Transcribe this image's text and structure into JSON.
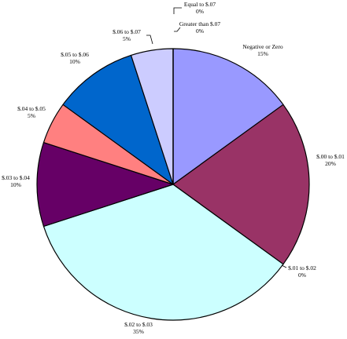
{
  "chart_data": {
    "type": "pie",
    "title": "",
    "slices": [
      {
        "name": "Negative or Zero",
        "value": 15,
        "label": "15%",
        "color": "#9999FF"
      },
      {
        "name": "$.00 to $.01",
        "value": 20,
        "label": "20%",
        "color": "#993366"
      },
      {
        "name": "$.01 to $.02",
        "value": 0,
        "label": "0%",
        "color": "#FFFFCC"
      },
      {
        "name": "$.02 to $.03",
        "value": 35,
        "label": "35%",
        "color": "#CCFFFF"
      },
      {
        "name": "$.03 to $.04",
        "value": 10,
        "label": "10%",
        "color": "#660066"
      },
      {
        "name": "$.04 to $.05",
        "value": 5,
        "label": "5%",
        "color": "#FF8080"
      },
      {
        "name": "$.05 to $.06",
        "value": 10,
        "label": "10%",
        "color": "#0066CC"
      },
      {
        "name": "$.06 to $.07",
        "value": 5,
        "label": "5%",
        "color": "#CCCCFF"
      },
      {
        "name": "Equal to $.07",
        "value": 0,
        "label": "0%",
        "color": "#000080"
      },
      {
        "name": "Greater than $.07",
        "value": 0,
        "label": "0%",
        "color": "#FF00FF"
      }
    ]
  }
}
